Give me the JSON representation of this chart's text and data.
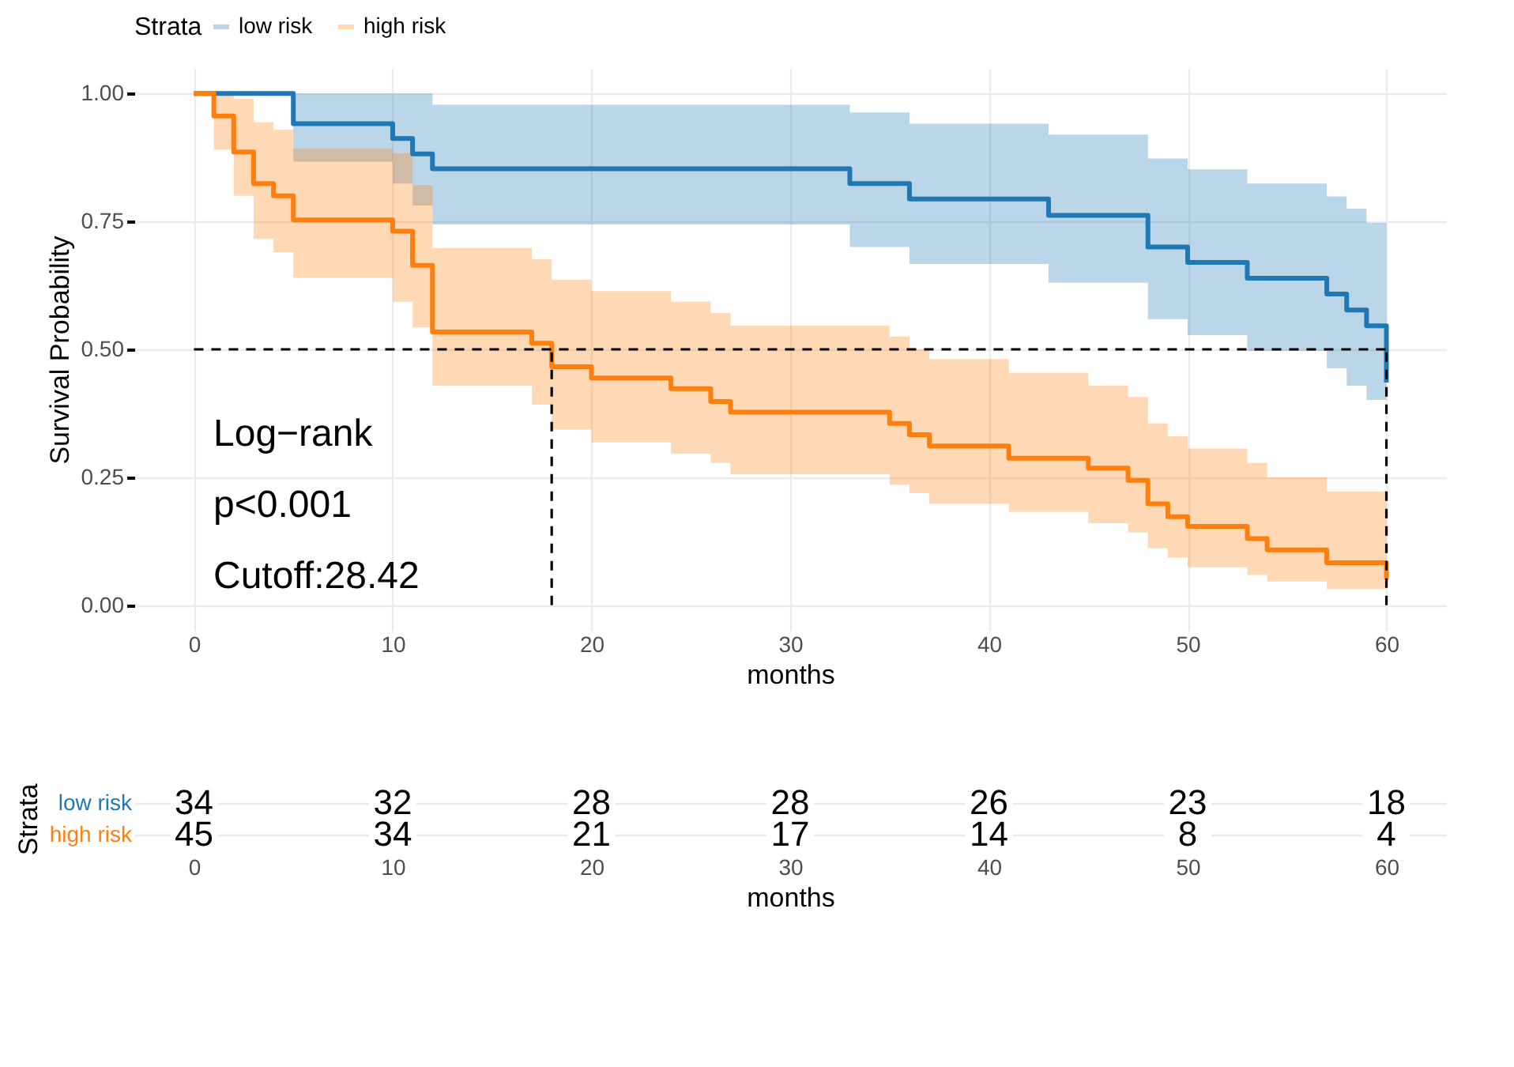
{
  "chart_data": [
    {
      "type": "step",
      "xlabel": "months",
      "ylabel": "Survival Probability",
      "legend_title": "Strata",
      "legend": "top",
      "grid": true,
      "xlim": [
        -3,
        63
      ],
      "xticks": [
        0,
        10,
        20,
        30,
        40,
        50,
        60
      ],
      "ylim": [
        -0.05,
        1.05
      ],
      "yticks": [
        {
          "value": 0,
          "label": "0.00"
        },
        {
          "value": 0.25,
          "label": "0.25"
        },
        {
          "value": 0.5,
          "label": "0.50"
        },
        {
          "value": 0.75,
          "label": "0.75"
        },
        {
          "value": 1,
          "label": "1.00"
        }
      ],
      "annotations": [
        "Log−rank",
        "p<0.001",
        "Cutoff:28.42"
      ],
      "ref_lines": [
        {
          "axis": "y",
          "value": 0.5,
          "line_style": "dashed"
        },
        {
          "axis": "x",
          "value": 18,
          "line_style": "dashed"
        },
        {
          "axis": "x",
          "value": 60,
          "line_style": "dashed"
        }
      ],
      "series": [
        {
          "name": "low risk",
          "color": "#1f77b4",
          "x": [
            0,
            5,
            10,
            11,
            12,
            33,
            36,
            43,
            48,
            50,
            53,
            57,
            58,
            59,
            60
          ],
          "values": [
            1,
            0.941,
            0.912,
            0.882,
            0.853,
            0.824,
            0.794,
            0.762,
            0.7,
            0.67,
            0.639,
            0.608,
            0.577,
            0.546,
            0.435
          ],
          "upper": [
            1,
            1,
            1,
            1,
            0.978,
            0.963,
            0.941,
            0.92,
            0.873,
            0.852,
            0.824,
            0.799,
            0.775,
            0.747,
            0.747
          ],
          "lower": [
            1,
            0.867,
            0.824,
            0.781,
            0.744,
            0.7,
            0.667,
            0.63,
            0.559,
            0.528,
            0.497,
            0.463,
            0.429,
            0.401,
            0.401
          ]
        },
        {
          "name": "high risk",
          "color": "#ff7f0e",
          "x": [
            0,
            1,
            2,
            3,
            4,
            5,
            10,
            11,
            12,
            17,
            18,
            20,
            24,
            26,
            27,
            35,
            36,
            37,
            41,
            45,
            47,
            48,
            49,
            50,
            53,
            54,
            57,
            60
          ],
          "values": [
            1,
            0.956,
            0.886,
            0.824,
            0.8,
            0.753,
            0.731,
            0.664,
            0.534,
            0.512,
            0.466,
            0.444,
            0.423,
            0.398,
            0.377,
            0.355,
            0.333,
            0.311,
            0.287,
            0.268,
            0.244,
            0.198,
            0.173,
            0.154,
            0.13,
            0.108,
            0.083,
            0.05
          ],
          "upper": [
            1,
            1,
            0.99,
            0.944,
            0.929,
            0.892,
            0.883,
            0.821,
            0.698,
            0.676,
            0.636,
            0.614,
            0.593,
            0.571,
            0.546,
            0.525,
            0.5,
            0.481,
            0.454,
            0.429,
            0.407,
            0.355,
            0.33,
            0.306,
            0.278,
            0.25,
            0.222,
            0.222
          ],
          "lower": [
            1,
            0.89,
            0.8,
            0.716,
            0.69,
            0.64,
            0.593,
            0.543,
            0.429,
            0.392,
            0.343,
            0.318,
            0.296,
            0.278,
            0.256,
            0.235,
            0.219,
            0.198,
            0.182,
            0.16,
            0.142,
            0.111,
            0.093,
            0.074,
            0.059,
            0.046,
            0.031,
            0.031
          ]
        }
      ]
    },
    {
      "type": "heatmap",
      "xlabel": "months",
      "ylabel": "Strata",
      "data_labels": true,
      "grid": true,
      "categories": [
        "0",
        "10",
        "20",
        "30",
        "40",
        "50",
        "60"
      ],
      "y_categories": [
        "low risk",
        "high risk"
      ],
      "colors": [
        "#1f77b4",
        "#ff7f0e"
      ],
      "cells": [
        [
          34,
          32,
          28,
          28,
          26,
          23,
          18
        ],
        [
          45,
          34,
          21,
          17,
          14,
          8,
          4
        ]
      ]
    }
  ]
}
